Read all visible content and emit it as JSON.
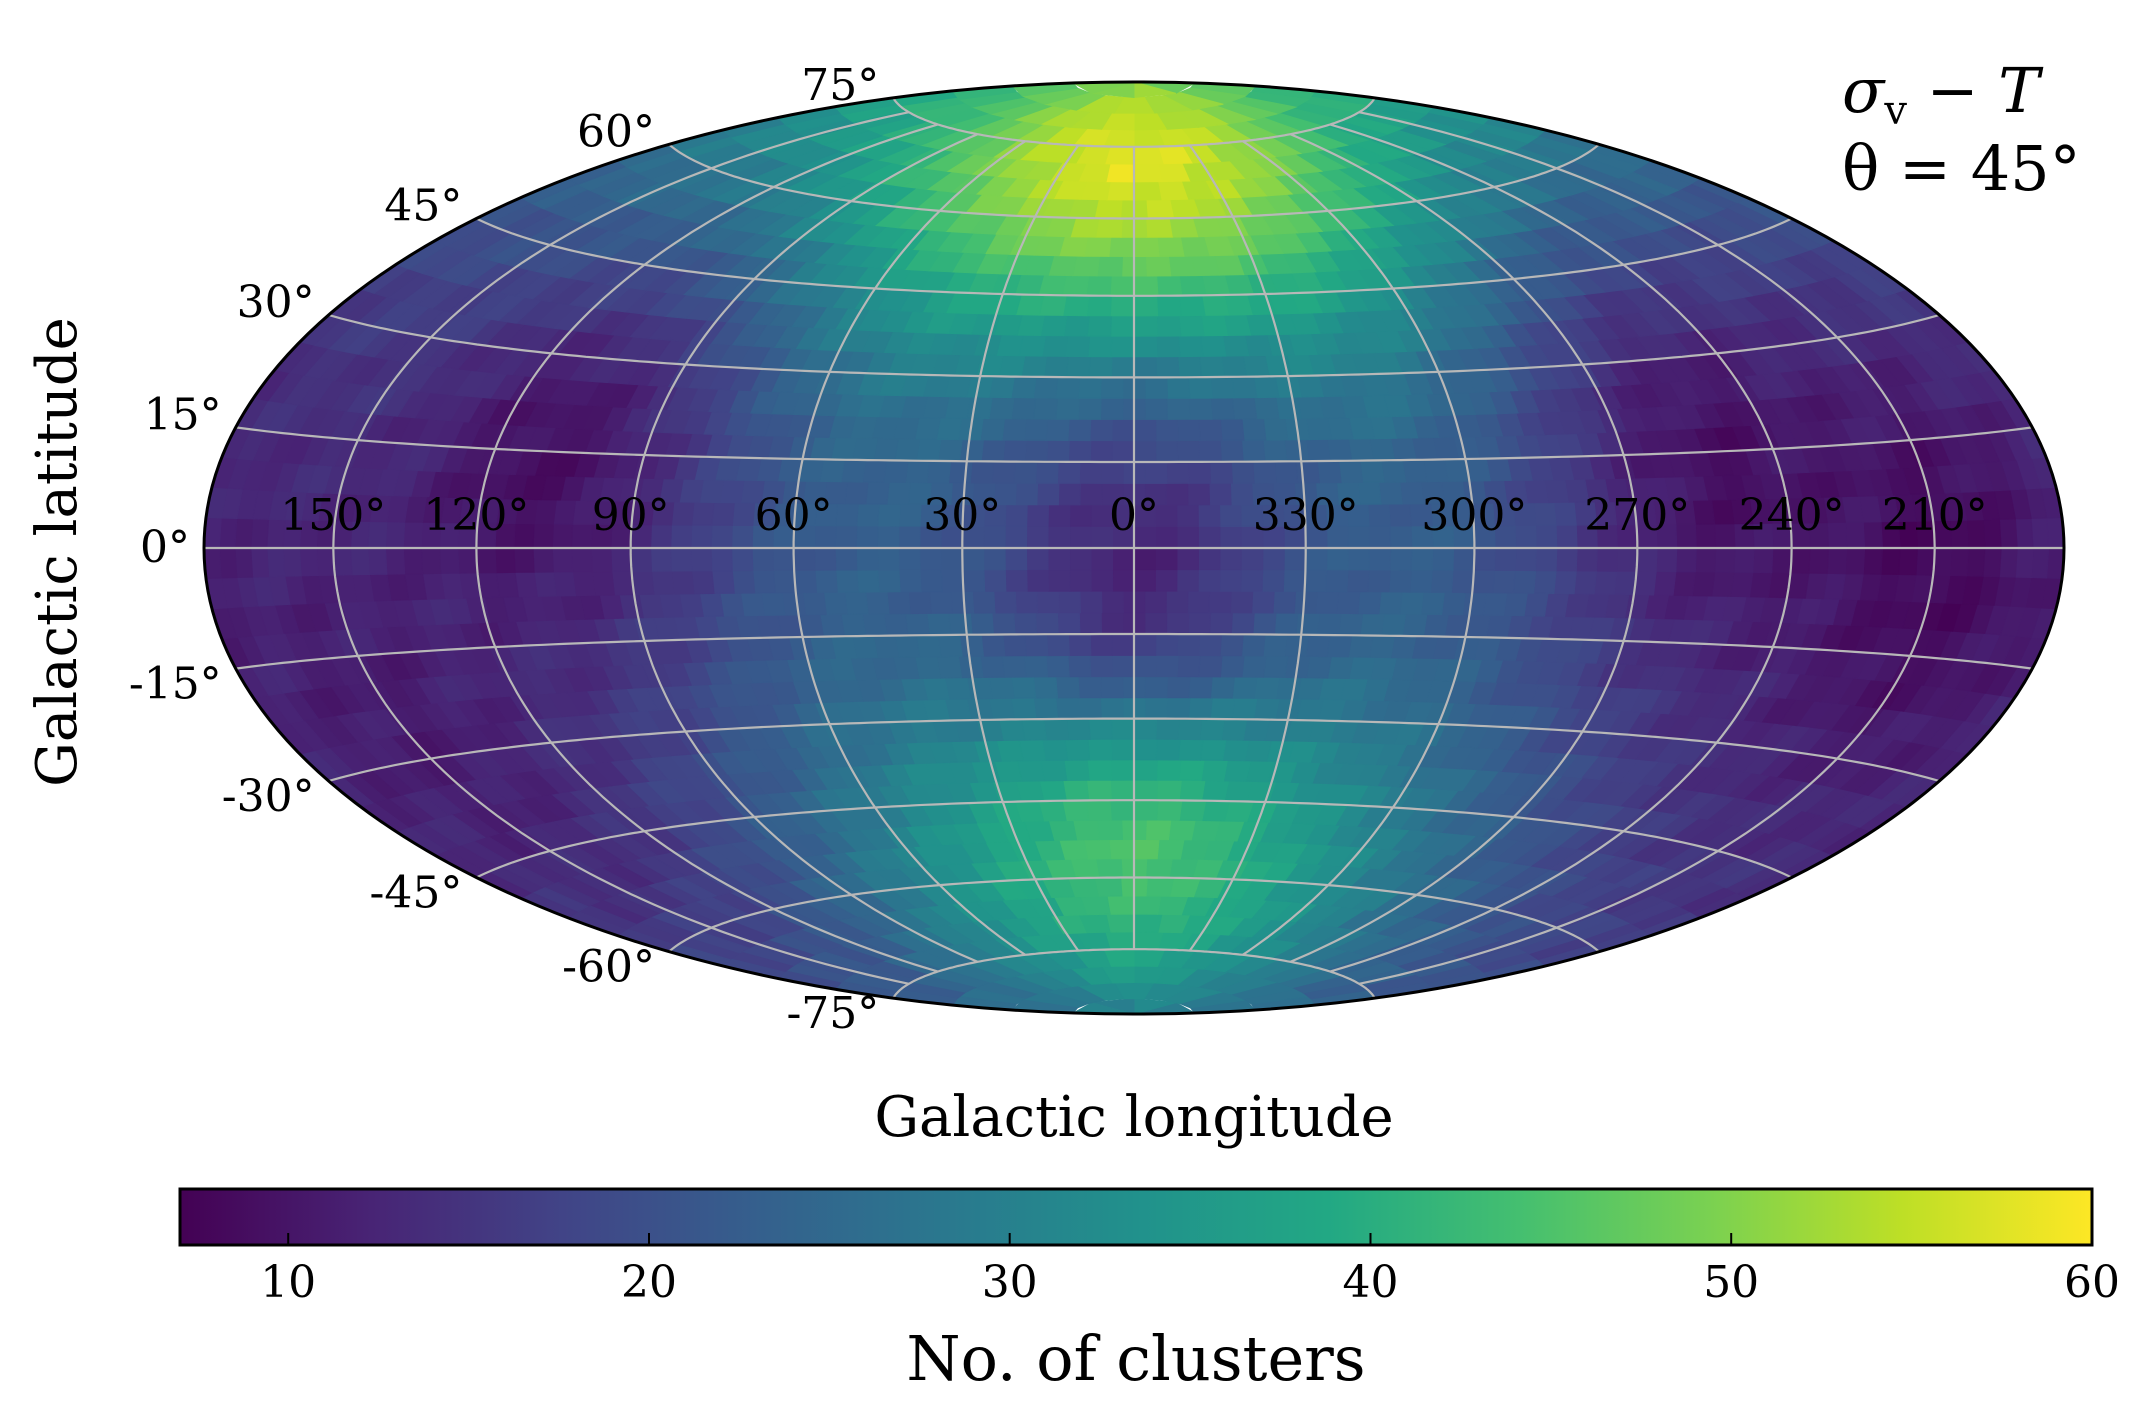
{
  "chart_data": {
    "type": "heatmap",
    "projection": "Aitoff/Hammer all-sky (galactic coordinates)",
    "xlabel": "Galactic longitude",
    "ylabel": "Galactic latitude",
    "annotation": {
      "line1_sym": "σ",
      "line1_sub": "v",
      "line1_rest": " − T",
      "line2": "θ = 45°"
    },
    "lon_ticks": [
      "150°",
      "120°",
      "90°",
      "60°",
      "30°",
      "0°",
      "330°",
      "300°",
      "270°",
      "240°",
      "210°"
    ],
    "lat_ticks": [
      "75°",
      "60°",
      "45°",
      "30°",
      "15°",
      "0°",
      "-15°",
      "-30°",
      "-45°",
      "-60°",
      "-75°"
    ],
    "grid": true,
    "colorbar": {
      "label": "No. of clusters",
      "colormap": "viridis",
      "vmin": 7,
      "vmax": 60,
      "ticks": [
        "10",
        "20",
        "30",
        "40",
        "50",
        "60"
      ],
      "orientation": "horizontal",
      "placement": "bottom"
    },
    "features": [
      {
        "lon": 0,
        "lat": 72,
        "value": 58,
        "note": "maximum near north galactic pole"
      },
      {
        "lon": 0,
        "lat": -55,
        "value": 45
      },
      {
        "lon": 110,
        "lat": 12,
        "value": 9
      },
      {
        "lon": 250,
        "lat": 12,
        "value": 9
      },
      {
        "lon": 210,
        "lat": -3,
        "value": 8
      },
      {
        "lon": 0,
        "lat": -3,
        "value": 12
      },
      {
        "lon": 150,
        "lat": -25,
        "value": 11
      }
    ]
  }
}
